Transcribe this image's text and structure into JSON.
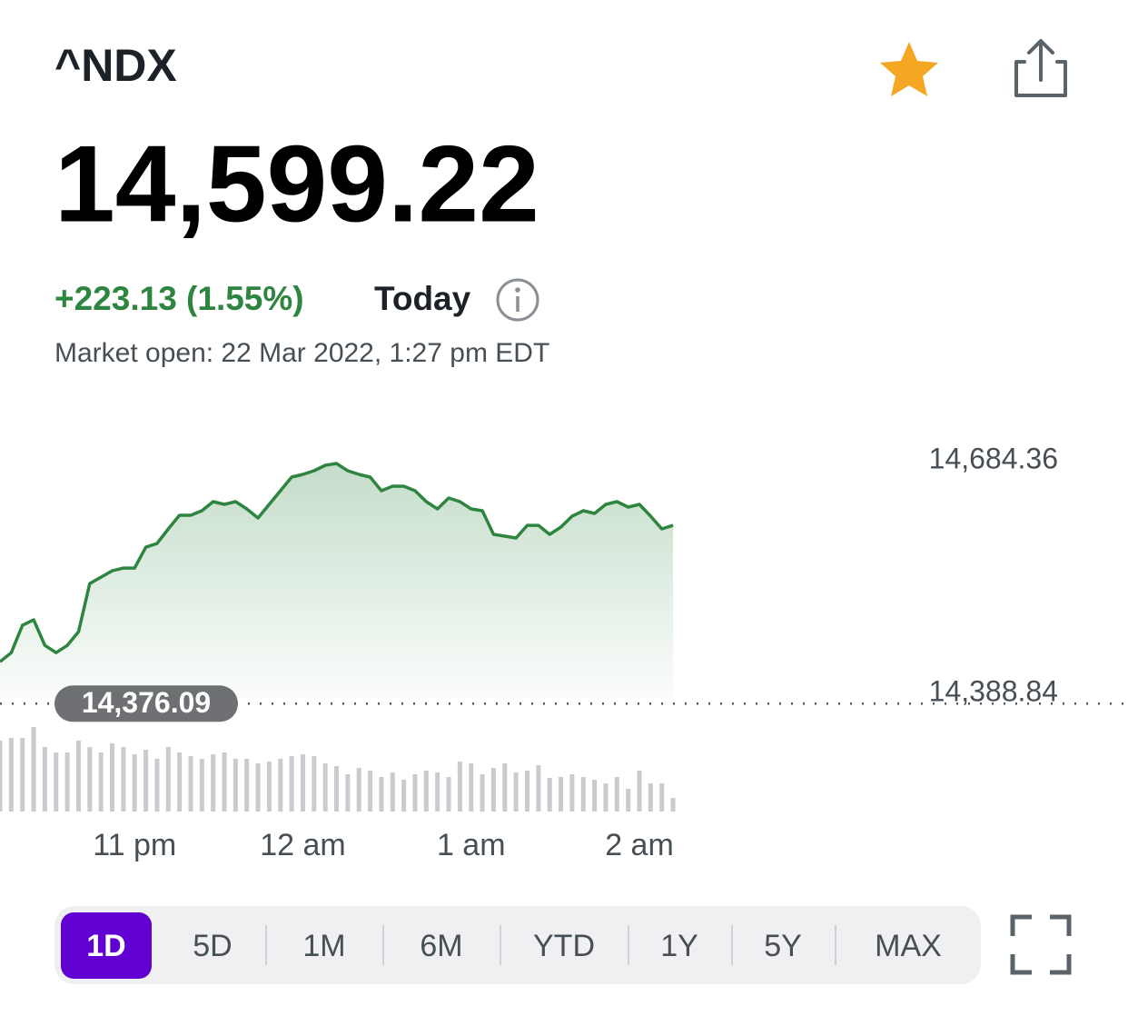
{
  "header": {
    "symbol": "^NDX",
    "price": "14,599.22",
    "change": "+223.13 (1.55%)",
    "period": "Today",
    "status": "Market open: 22 Mar 2022, 1:27 pm EDT"
  },
  "chart_data": {
    "type": "line",
    "color": "#2e8540",
    "x": [
      12,
      16,
      20,
      24,
      28,
      32,
      36,
      40,
      44,
      48,
      52,
      56,
      60,
      64,
      68,
      72,
      76,
      80,
      84,
      88,
      92,
      96,
      100,
      104,
      108,
      112,
      116,
      120,
      124,
      128,
      132,
      136,
      140,
      144,
      148,
      152,
      156,
      160,
      164,
      168,
      172,
      176,
      180,
      184,
      188,
      192,
      196,
      200,
      204,
      208,
      212,
      216,
      220,
      224,
      228,
      232,
      236,
      240,
      244,
      248,
      252
    ],
    "values": [
      14429.3,
      14440.8,
      14475.5,
      14482.4,
      14450.0,
      14440.8,
      14450.0,
      14467.4,
      14528.5,
      14536.6,
      14544.7,
      14548.2,
      14548.2,
      14574.7,
      14579.3,
      14597.8,
      14615.1,
      14615.1,
      14620.9,
      14632.4,
      14629.0,
      14632.4,
      14623.2,
      14611.7,
      14629.0,
      14646.3,
      14663.6,
      14667.0,
      14671.7,
      14678.6,
      14680.9,
      14671.7,
      14667.0,
      14663.6,
      14646.3,
      14652.0,
      14652.0,
      14646.3,
      14632.4,
      14623.2,
      14637.0,
      14632.4,
      14623.2,
      14620.9,
      14590.9,
      14588.6,
      14586.3,
      14602.4,
      14602.4,
      14590.9,
      14600.1,
      14614.0,
      14620.9,
      14617.4,
      14629.0,
      14632.4,
      14625.5,
      14629.0,
      14614.0,
      14597.8,
      14602.4
    ],
    "volume": [
      78,
      81,
      81,
      93,
      71,
      65,
      65,
      78,
      71,
      65,
      75,
      71,
      63,
      68,
      58,
      71,
      65,
      61,
      58,
      63,
      65,
      58,
      58,
      53,
      55,
      58,
      61,
      63,
      61,
      53,
      50,
      41,
      48,
      45,
      38,
      43,
      35,
      41,
      45,
      43,
      38,
      55,
      53,
      41,
      48,
      53,
      43,
      45,
      51,
      37,
      38,
      41,
      38,
      35,
      31,
      38,
      25,
      45,
      31,
      31,
      15
    ],
    "volume_lim": [
      0,
      100
    ],
    "xlim": [
      12,
      331
    ],
    "xticks": [
      {
        "value": 60,
        "label": "11 pm"
      },
      {
        "value": 120,
        "label": "12 am"
      },
      {
        "value": 180,
        "label": "1 am"
      },
      {
        "value": 240,
        "label": "2 am"
      }
    ],
    "ylim": [
      14358,
      14727
    ],
    "yticks": [
      {
        "value": 14684.36,
        "label": "14,684.36"
      },
      {
        "value": 14388.84,
        "label": "14,388.84"
      }
    ],
    "previous_close": {
      "value": 14376.09,
      "label": "14,376.09"
    }
  },
  "ranges": {
    "options": [
      "1D",
      "5D",
      "1M",
      "6M",
      "YTD",
      "1Y",
      "5Y",
      "MAX"
    ],
    "selected": 0
  }
}
